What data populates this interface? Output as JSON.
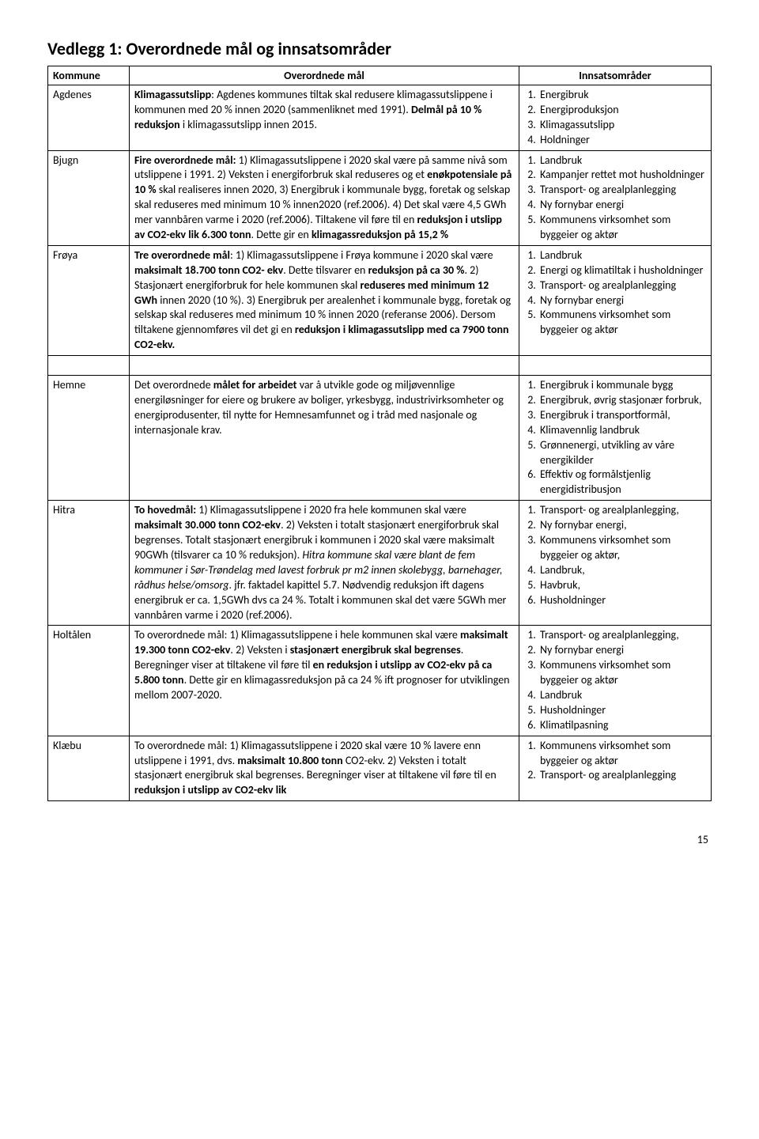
{
  "title": "Vedlegg 1: Overordnede mål og innsatsområder",
  "headers": {
    "c1": "Kommune",
    "c2": "Overordnede mål",
    "c3": "Innsatsområder"
  },
  "pagenum": "15",
  "rows": [
    {
      "kommune": "Agdenes",
      "mal": "<span class='b'>Klimagassutslipp</span>: Agdenes kommunes tiltak skal redusere klimagassutslippene i kommunen med 20 % innen 2020 (sammenliknet med 1991). <span class='b'>Delmål på 10 % reduksjon</span> i klimagassutslipp innen 2015.",
      "innsats": [
        "Energibruk",
        "Energiproduksjon",
        "Klimagassutslipp",
        "Holdninger"
      ]
    },
    {
      "kommune": "Bjugn",
      "mal": "<span class='b'>Fire overordnede mål:</span> 1) Klimagassutslippene i 2020 skal være på samme nivå som utslippene i 1991. 2) Veksten i energiforbruk skal reduseres og et <span class='b'>enøkpotensiale på 10 %</span> skal realiseres innen 2020, 3) Energibruk i kommunale bygg, foretak og selskap skal reduseres med minimum 10 % innen2020 (ref.2006). 4) Det skal være 4,5 GWh mer vannbåren varme i 2020 (ref.2006). Tiltakene vil føre til en <span class='b'>reduksjon i utslipp av CO2-ekv lik 6.300 tonn</span>. Dette gir en <span class='b'>klimagassreduksjon på 15,2 %</span>",
      "innsats": [
        "Landbruk",
        "Kampanjer rettet mot husholdninger",
        "Transport- og arealplanlegging",
        "Ny fornybar energi",
        "Kommunens virksomhet som byggeier og aktør"
      ]
    },
    {
      "kommune": "Frøya",
      "mal": "<span class='b'>Tre overordnede mål</span>: 1) Klimagassutslippene i Frøya kommune i 2020 skal være <span class='b'>maksimalt 18.700 tonn CO2- ekv</span>. Dette tilsvarer en <span class='b'>reduksjon på ca 30 %</span>. 2) Stasjonært energiforbruk for hele kommunen skal <span class='b'>reduseres med minimum 12 GWh</span> innen 2020 (10 %). 3) Energibruk per arealenhet i kommunale bygg, foretak og selskap skal reduseres med minimum 10 % innen 2020 (referanse 2006). Dersom tiltakene gjennomføres vil det gi en <span class='b'>reduksjon i klimagassutslipp med ca 7900 tonn CO2-ekv.</span>",
      "innsats": [
        "Landbruk",
        "Energi og klimatiltak i husholdninger",
        "Transport- og arealplanlegging",
        "Ny fornybar energi",
        "Kommunens virksomhet som byggeier og aktør"
      ]
    }
  ],
  "rows2": [
    {
      "kommune": "Hemne",
      "mal": "Det overordnede <span class='b'>målet for arbeidet</span> var å utvikle gode og miljøvennlige energiløsninger for eiere og brukere av boliger, yrkesbygg, industrivirksomheter og energiprodusenter, til nytte for Hemnesamfunnet og i tråd med nasjonale og internasjonale krav.",
      "innsats": [
        "Energibruk i kommunale bygg",
        "Energibruk, øvrig stasjonær forbruk,",
        "Energibruk i transportformål,",
        "Klimavennlig landbruk",
        "Grønnenergi, utvikling av våre energikilder",
        "Effektiv og formålstjenlig energidistribusjon"
      ]
    },
    {
      "kommune": "Hitra",
      "mal": "<span class='b'>To hovedmål:</span> 1) Klimagassutslippene i 2020 fra hele kommunen skal være <span class='b'>maksimalt 30.000 tonn CO2-ekv</span>. 2) Veksten i totalt stasjonært energiforbruk skal begrenses. Totalt stasjonært energibruk i kommunen i 2020 skal være maksimalt 90GWh (tilsvarer ca 10 % reduksjon). <span class='i'>Hitra kommune skal være blant de fem kommuner i Sør-Trøndelag med lavest forbruk pr m2 innen skolebygg, barnehager, rådhus helse/omsorg</span>. jfr. faktadel kapittel 5.7. Nødvendig reduksjon ift dagens energibruk er ca. 1,5GWh dvs ca 24 %. Totalt i kommunen skal det være 5GWh mer vannbåren varme i 2020 (ref.2006).",
      "innsats": [
        "Transport- og arealplanlegging,",
        "Ny fornybar energi,",
        "Kommunens virksomhet som byggeier og aktør,",
        "Landbruk,",
        "Havbruk,",
        "Husholdninger"
      ]
    },
    {
      "kommune": "Holtålen",
      "mal": "To overordnede mål: 1) Klimagassutslippene i hele kommunen skal være <span class='b'>maksimalt 19.300 tonn CO2-ekv</span>. 2) Veksten i <span class='b'>stasjonært energibruk skal begrenses</span>. Beregninger viser at tiltakene vil føre til <span class='b'>en reduksjon i utslipp av CO2-ekv på ca 5.800 tonn</span>. Dette gir en klimagassreduksjon på ca 24 % ift prognoser for utviklingen mellom 2007-2020.",
      "innsats": [
        "Transport- og arealplanlegging,",
        "Ny fornybar energi",
        "Kommunens virksomhet som byggeier og aktør",
        "Landbruk",
        "Husholdninger",
        "Klimatilpasning"
      ]
    },
    {
      "kommune": "Klæbu",
      "mal": "To overordnede mål: 1) Klimagassutslippene i 2020 skal være 10 % lavere enn utslippene i 1991, dvs. <span class='b'>maksimalt 10.800 tonn</span> CO2-ekv. 2) Veksten i totalt stasjonært energibruk skal begrenses. Beregninger viser at tiltakene vil føre til en <span class='b'>reduksjon i utslipp av CO2-ekv lik</span>",
      "innsats": [
        "Kommunens virksomhet som byggeier og aktør",
        "Transport- og arealplanlegging"
      ]
    }
  ]
}
